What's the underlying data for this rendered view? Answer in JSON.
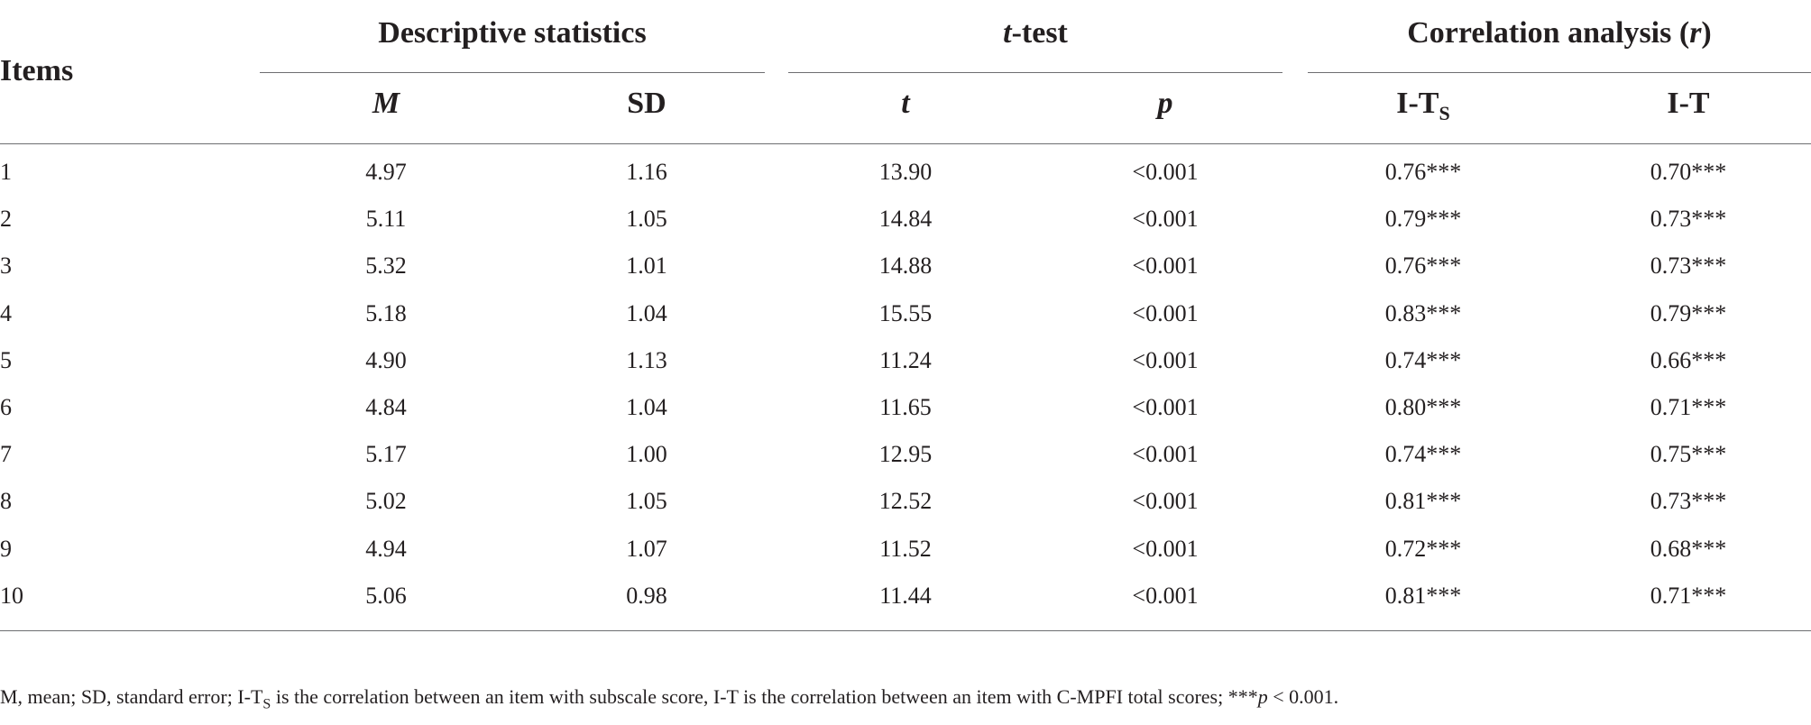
{
  "groups": {
    "descriptive": "Descriptive statistics",
    "ttest_italic": "t",
    "ttest_rest": "-test",
    "corr_main": "Correlation analysis (",
    "corr_r": "r",
    "corr_close": ")"
  },
  "headers": {
    "items": "Items",
    "M": "M",
    "SD": "SD",
    "t": "t",
    "p": "p",
    "its_main": "I-T",
    "its_sub": "S",
    "it": "I-T"
  },
  "rows": [
    {
      "item": "1",
      "M": "4.97",
      "SD": "1.16",
      "t": "13.90",
      "p": "<0.001",
      "its": "0.76***",
      "it": "0.70***"
    },
    {
      "item": "2",
      "M": "5.11",
      "SD": "1.05",
      "t": "14.84",
      "p": "<0.001",
      "its": "0.79***",
      "it": "0.73***"
    },
    {
      "item": "3",
      "M": "5.32",
      "SD": "1.01",
      "t": "14.88",
      "p": "<0.001",
      "its": "0.76***",
      "it": "0.73***"
    },
    {
      "item": "4",
      "M": "5.18",
      "SD": "1.04",
      "t": "15.55",
      "p": "<0.001",
      "its": "0.83***",
      "it": "0.79***"
    },
    {
      "item": "5",
      "M": "4.90",
      "SD": "1.13",
      "t": "11.24",
      "p": "<0.001",
      "its": "0.74***",
      "it": "0.66***"
    },
    {
      "item": "6",
      "M": "4.84",
      "SD": "1.04",
      "t": "11.65",
      "p": "<0.001",
      "its": "0.80***",
      "it": "0.71***"
    },
    {
      "item": "7",
      "M": "5.17",
      "SD": "1.00",
      "t": "12.95",
      "p": "<0.001",
      "its": "0.74***",
      "it": "0.75***"
    },
    {
      "item": "8",
      "M": "5.02",
      "SD": "1.05",
      "t": "12.52",
      "p": "<0.001",
      "its": "0.81***",
      "it": "0.73***"
    },
    {
      "item": "9",
      "M": "4.94",
      "SD": "1.07",
      "t": "11.52",
      "p": "<0.001",
      "its": "0.72***",
      "it": "0.68***"
    },
    {
      "item": "10",
      "M": "5.06",
      "SD": "0.98",
      "t": "11.44",
      "p": "<0.001",
      "its": "0.81***",
      "it": "0.71***"
    }
  ],
  "note": {
    "part1": "M, mean; SD, standard error; I-T",
    "sub": "S",
    "part2": " is the correlation between an item with subscale score, I-T is the correlation between an item with C-MPFI total scores; ***",
    "p_italic": "p",
    "part3": " < 0.001."
  }
}
